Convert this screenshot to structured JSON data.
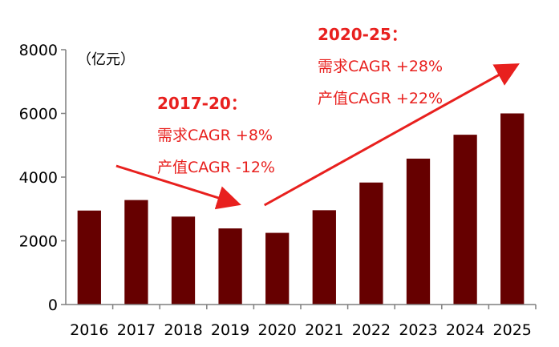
{
  "chart_data": {
    "type": "bar",
    "title": "",
    "xlabel": "",
    "ylabel": "",
    "unit": "（亿元）",
    "categories": [
      "2016",
      "2017",
      "2018",
      "2019",
      "2020",
      "2021",
      "2022",
      "2023",
      "2024",
      "2025"
    ],
    "values": [
      2950,
      3280,
      2760,
      2390,
      2250,
      2960,
      3830,
      4580,
      5330,
      6000
    ],
    "ylim": [
      0,
      8000
    ],
    "yticks": [
      0,
      2000,
      4000,
      6000,
      8000
    ],
    "grid": false,
    "legend": "none",
    "colors": {
      "bar": "#660000",
      "annotation": "#e8201e",
      "axis": "#7f7f7f"
    },
    "annotations": [
      {
        "title": "2017-20：",
        "lines": [
          "需求CAGR +8%",
          "产值CAGR -12%"
        ],
        "arrow": "down",
        "period": [
          "2017",
          "2020"
        ]
      },
      {
        "title": "2020-25：",
        "lines": [
          "需求CAGR +28%",
          "产值CAGR +22%"
        ],
        "arrow": "up",
        "period": [
          "2020",
          "2025"
        ]
      }
    ]
  }
}
